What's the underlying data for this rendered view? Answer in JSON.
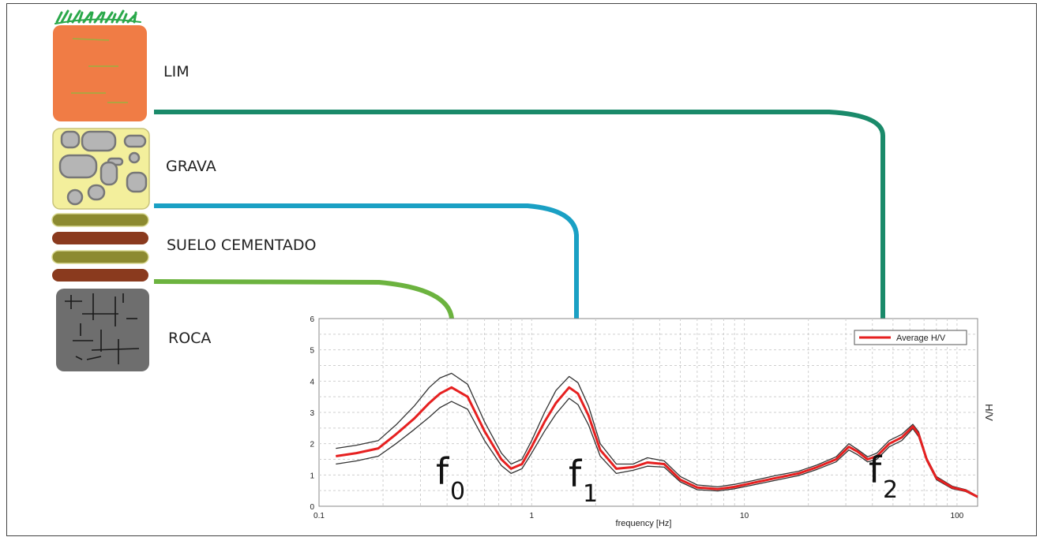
{
  "layers": [
    {
      "label": "LIM",
      "color": "#f07c45"
    },
    {
      "label": "GRAVA",
      "color": "#f3ef9c"
    },
    {
      "label": "SUELO CEMENTADO",
      "colors": [
        "#8c8a30",
        "#8a3a1e"
      ]
    },
    {
      "label": "ROCA",
      "color": "#6e6e6e"
    }
  ],
  "connector_colors": {
    "f0": "#6cb33f",
    "f1": "#1aa0c4",
    "f2": "#1a8a6a"
  },
  "peak_labels": [
    {
      "main": "f",
      "sub": "0"
    },
    {
      "main": "f",
      "sub": "1"
    },
    {
      "main": "f",
      "sub": "2"
    }
  ],
  "chart_data": {
    "type": "line",
    "xlabel": "frequency [Hz]",
    "ylabel": "H/V",
    "xscale": "log",
    "xlim": [
      0.1,
      125
    ],
    "ylim": [
      0,
      6
    ],
    "xticks": [
      "0.1",
      "1",
      "10",
      "100"
    ],
    "yticks": [
      "0",
      "1",
      "2",
      "3",
      "4",
      "5",
      "6"
    ],
    "grid": true,
    "legend_position": "top-right",
    "legend": [
      "Average H/V"
    ],
    "series": [
      {
        "name": "Average H/V",
        "color": "#e62020",
        "x": [
          0.12,
          0.15,
          0.19,
          0.23,
          0.28,
          0.33,
          0.37,
          0.42,
          0.5,
          0.6,
          0.72,
          0.8,
          0.9,
          1.0,
          1.15,
          1.3,
          1.5,
          1.65,
          1.85,
          2.1,
          2.5,
          3.0,
          3.5,
          4.2,
          5.0,
          6.0,
          7.5,
          9.0,
          11,
          14,
          18,
          22,
          27,
          31,
          34,
          38,
          42,
          48,
          55,
          62,
          66,
          72,
          80,
          95,
          110,
          125
        ],
        "y": [
          1.6,
          1.7,
          1.85,
          2.3,
          2.8,
          3.3,
          3.6,
          3.8,
          3.5,
          2.4,
          1.5,
          1.2,
          1.35,
          1.9,
          2.7,
          3.3,
          3.8,
          3.6,
          2.9,
          1.8,
          1.2,
          1.25,
          1.4,
          1.35,
          0.85,
          0.6,
          0.55,
          0.62,
          0.75,
          0.9,
          1.05,
          1.25,
          1.5,
          1.9,
          1.75,
          1.5,
          1.6,
          2.0,
          2.2,
          2.55,
          2.3,
          1.5,
          0.9,
          0.6,
          0.5,
          0.3
        ]
      },
      {
        "name": "",
        "color": "#333333",
        "x": [
          0.12,
          0.15,
          0.19,
          0.23,
          0.28,
          0.33,
          0.37,
          0.42,
          0.5,
          0.6,
          0.72,
          0.8,
          0.9,
          1.0,
          1.15,
          1.3,
          1.5,
          1.65,
          1.85,
          2.1,
          2.5,
          3.0,
          3.5,
          4.2,
          5.0,
          6.0,
          7.5,
          9.0,
          11,
          14,
          18,
          22,
          27,
          31,
          34,
          38,
          42,
          48,
          55,
          62,
          66,
          72,
          80,
          95,
          110,
          125
        ],
        "y": [
          1.85,
          1.95,
          2.1,
          2.6,
          3.2,
          3.8,
          4.1,
          4.25,
          3.9,
          2.7,
          1.7,
          1.35,
          1.5,
          2.1,
          3.0,
          3.7,
          4.15,
          3.95,
          3.2,
          2.0,
          1.35,
          1.35,
          1.55,
          1.45,
          0.95,
          0.68,
          0.62,
          0.7,
          0.82,
          0.98,
          1.12,
          1.32,
          1.58,
          2.0,
          1.82,
          1.58,
          1.7,
          2.1,
          2.3,
          2.62,
          2.38,
          1.55,
          0.95,
          0.64,
          0.53,
          0.32
        ]
      },
      {
        "name": "",
        "color": "#333333",
        "x": [
          0.12,
          0.15,
          0.19,
          0.23,
          0.28,
          0.33,
          0.37,
          0.42,
          0.5,
          0.6,
          0.72,
          0.8,
          0.9,
          1.0,
          1.15,
          1.3,
          1.5,
          1.65,
          1.85,
          2.1,
          2.5,
          3.0,
          3.5,
          4.2,
          5.0,
          6.0,
          7.5,
          9.0,
          11,
          14,
          18,
          22,
          27,
          31,
          34,
          38,
          42,
          48,
          55,
          62,
          66,
          72,
          80,
          95,
          110,
          125
        ],
        "y": [
          1.35,
          1.45,
          1.6,
          2.0,
          2.45,
          2.85,
          3.15,
          3.35,
          3.1,
          2.1,
          1.3,
          1.05,
          1.2,
          1.7,
          2.4,
          2.95,
          3.45,
          3.25,
          2.6,
          1.6,
          1.05,
          1.15,
          1.28,
          1.25,
          0.78,
          0.53,
          0.49,
          0.56,
          0.68,
          0.83,
          0.98,
          1.18,
          1.42,
          1.8,
          1.65,
          1.42,
          1.5,
          1.9,
          2.1,
          2.48,
          2.22,
          1.45,
          0.85,
          0.56,
          0.47,
          0.28
        ]
      }
    ]
  }
}
